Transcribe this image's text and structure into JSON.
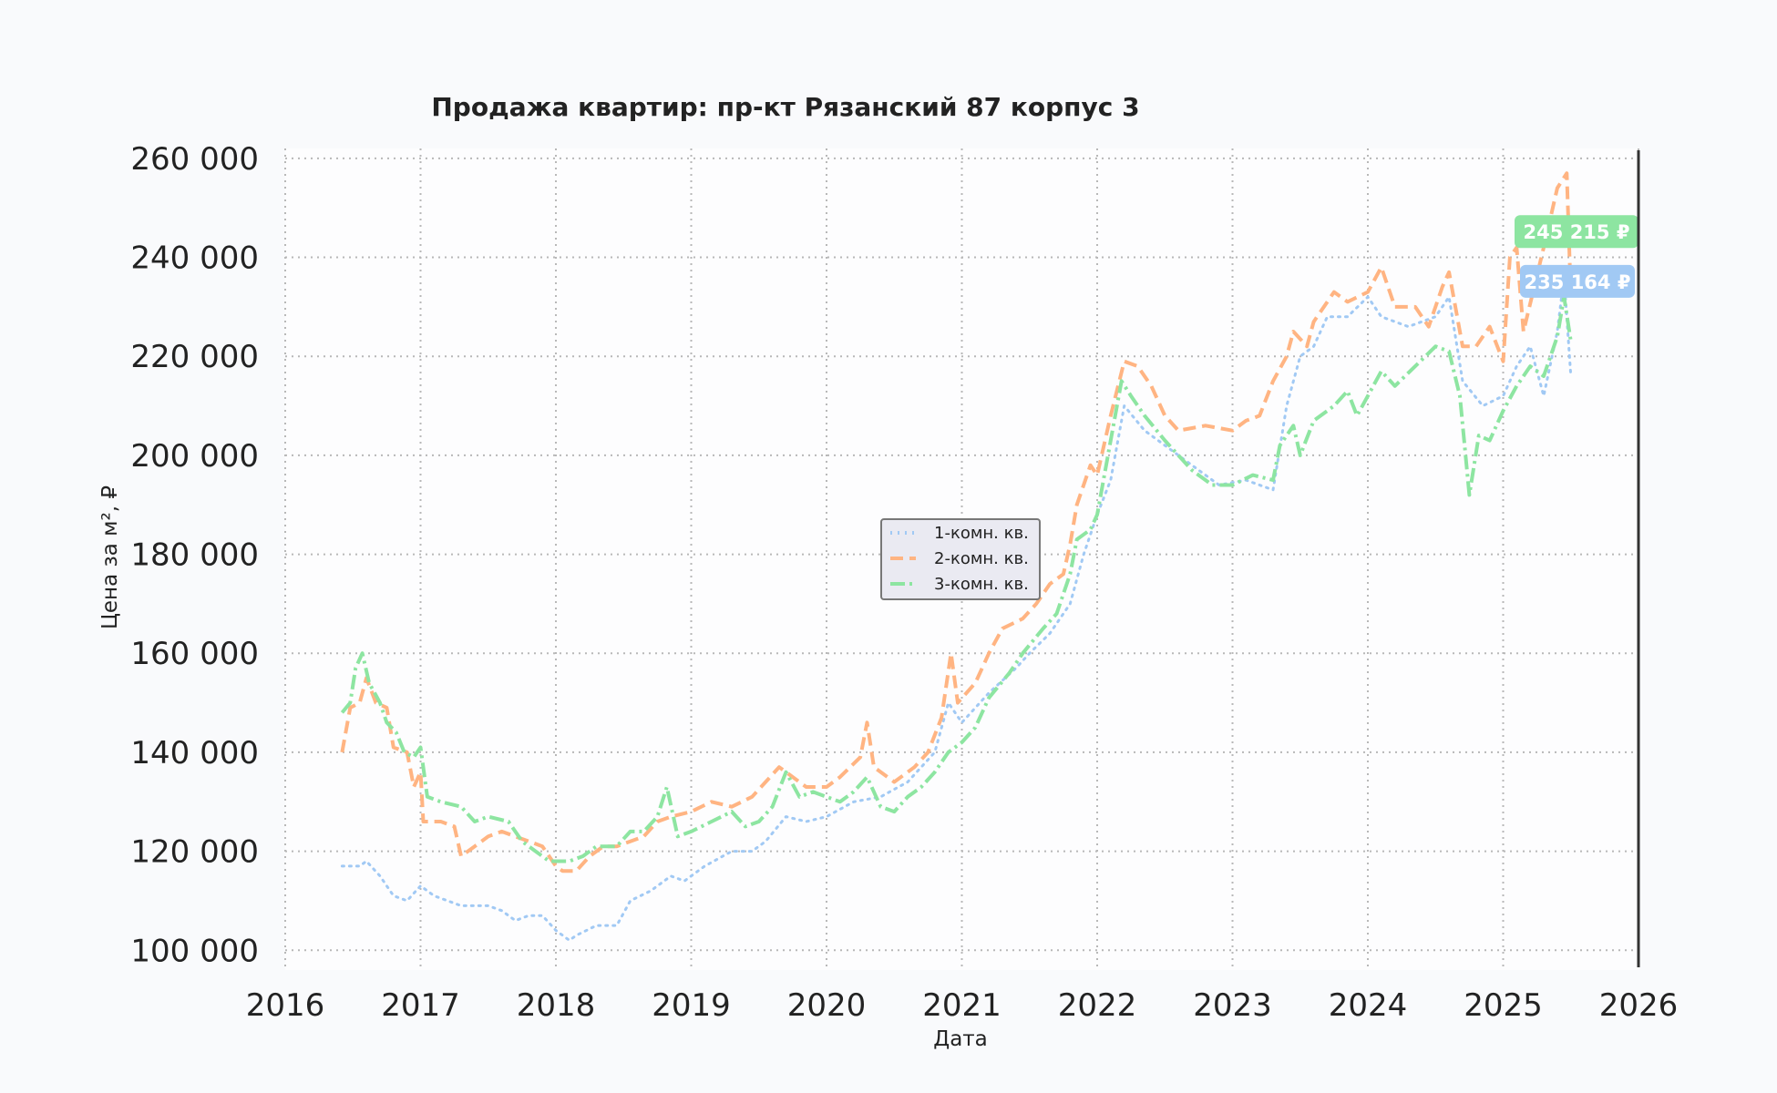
{
  "chart_data": {
    "type": "line",
    "title": "Продажа квартир: пр-кт Рязанский 87 корпус 3",
    "xlabel": "Дата",
    "ylabel": "Цена за м², ₽",
    "xlim": [
      2016.0,
      2026.0
    ],
    "ylim": [
      96000,
      262000
    ],
    "x_ticks": [
      2016,
      2017,
      2018,
      2019,
      2020,
      2021,
      2022,
      2023,
      2024,
      2025,
      2026
    ],
    "x_tick_labels": [
      "2016",
      "2017",
      "2018",
      "2019",
      "2020",
      "2021",
      "2022",
      "2023",
      "2024",
      "2025",
      "2026"
    ],
    "y_ticks": [
      100000,
      120000,
      140000,
      160000,
      180000,
      200000,
      220000,
      240000,
      260000
    ],
    "y_tick_labels": [
      "100 000",
      "120 000",
      "140 000",
      "160 000",
      "180 000",
      "200 000",
      "220 000",
      "240 000",
      "260 000"
    ],
    "grid": true,
    "legend_position": "center",
    "series": [
      {
        "name": "1-комн. кв.",
        "color": "#a1c9f4",
        "style": "dotted",
        "points": [
          [
            2016.42,
            117000
          ],
          [
            2016.55,
            117000
          ],
          [
            2016.6,
            118000
          ],
          [
            2016.7,
            115000
          ],
          [
            2016.8,
            111000
          ],
          [
            2016.9,
            110000
          ],
          [
            2017.0,
            113000
          ],
          [
            2017.1,
            111000
          ],
          [
            2017.3,
            109000
          ],
          [
            2017.5,
            109000
          ],
          [
            2017.6,
            108000
          ],
          [
            2017.7,
            106000
          ],
          [
            2017.8,
            107000
          ],
          [
            2017.9,
            107000
          ],
          [
            2018.0,
            104000
          ],
          [
            2018.1,
            102000
          ],
          [
            2018.15,
            103000
          ],
          [
            2018.3,
            105000
          ],
          [
            2018.45,
            105000
          ],
          [
            2018.55,
            110000
          ],
          [
            2018.7,
            112000
          ],
          [
            2018.85,
            115000
          ],
          [
            2018.95,
            114000
          ],
          [
            2019.1,
            117000
          ],
          [
            2019.3,
            120000
          ],
          [
            2019.45,
            120000
          ],
          [
            2019.55,
            122000
          ],
          [
            2019.7,
            127000
          ],
          [
            2019.85,
            126000
          ],
          [
            2020.0,
            127000
          ],
          [
            2020.2,
            130000
          ],
          [
            2020.4,
            131000
          ],
          [
            2020.6,
            134000
          ],
          [
            2020.8,
            140000
          ],
          [
            2020.9,
            150000
          ],
          [
            2021.0,
            146000
          ],
          [
            2021.2,
            152000
          ],
          [
            2021.4,
            157000
          ],
          [
            2021.5,
            160000
          ],
          [
            2021.65,
            164000
          ],
          [
            2021.8,
            170000
          ],
          [
            2021.9,
            180000
          ],
          [
            2022.0,
            188000
          ],
          [
            2022.1,
            195000
          ],
          [
            2022.2,
            210000
          ],
          [
            2022.35,
            205000
          ],
          [
            2022.5,
            202000
          ],
          [
            2022.7,
            198000
          ],
          [
            2022.9,
            194000
          ],
          [
            2023.1,
            195000
          ],
          [
            2023.3,
            193000
          ],
          [
            2023.4,
            210000
          ],
          [
            2023.5,
            220000
          ],
          [
            2023.6,
            222000
          ],
          [
            2023.7,
            228000
          ],
          [
            2023.85,
            228000
          ],
          [
            2024.0,
            232000
          ],
          [
            2024.1,
            228000
          ],
          [
            2024.3,
            226000
          ],
          [
            2024.5,
            228000
          ],
          [
            2024.6,
            232000
          ],
          [
            2024.7,
            215000
          ],
          [
            2024.85,
            210000
          ],
          [
            2025.0,
            212000
          ],
          [
            2025.1,
            218000
          ],
          [
            2025.2,
            222000
          ],
          [
            2025.3,
            212000
          ],
          [
            2025.4,
            225000
          ],
          [
            2025.45,
            236000
          ],
          [
            2025.5,
            216000
          ]
        ]
      },
      {
        "name": "2-комн. кв.",
        "color": "#ffb482",
        "style": "dashed",
        "points": [
          [
            2016.42,
            140000
          ],
          [
            2016.48,
            149000
          ],
          [
            2016.55,
            150000
          ],
          [
            2016.6,
            155000
          ],
          [
            2016.67,
            150000
          ],
          [
            2016.75,
            149000
          ],
          [
            2016.8,
            141000
          ],
          [
            2016.9,
            140000
          ],
          [
            2016.95,
            133000
          ],
          [
            2017.0,
            136000
          ],
          [
            2017.02,
            126000
          ],
          [
            2017.15,
            126000
          ],
          [
            2017.25,
            125000
          ],
          [
            2017.3,
            119000
          ],
          [
            2017.4,
            121000
          ],
          [
            2017.5,
            123000
          ],
          [
            2017.6,
            124000
          ],
          [
            2017.7,
            123000
          ],
          [
            2017.8,
            122000
          ],
          [
            2017.9,
            121000
          ],
          [
            2018.0,
            117000
          ],
          [
            2018.05,
            116000
          ],
          [
            2018.15,
            116000
          ],
          [
            2018.25,
            119000
          ],
          [
            2018.35,
            121000
          ],
          [
            2018.45,
            121000
          ],
          [
            2018.55,
            122000
          ],
          [
            2018.65,
            123000
          ],
          [
            2018.75,
            126000
          ],
          [
            2018.85,
            127000
          ],
          [
            2019.0,
            128000
          ],
          [
            2019.15,
            130000
          ],
          [
            2019.3,
            129000
          ],
          [
            2019.45,
            131000
          ],
          [
            2019.55,
            134000
          ],
          [
            2019.65,
            137000
          ],
          [
            2019.75,
            135000
          ],
          [
            2019.85,
            133000
          ],
          [
            2020.0,
            133000
          ],
          [
            2020.1,
            135000
          ],
          [
            2020.25,
            139000
          ],
          [
            2020.3,
            146000
          ],
          [
            2020.35,
            137000
          ],
          [
            2020.5,
            134000
          ],
          [
            2020.65,
            137000
          ],
          [
            2020.75,
            140000
          ],
          [
            2020.85,
            147000
          ],
          [
            2020.92,
            160000
          ],
          [
            2020.97,
            150000
          ],
          [
            2021.1,
            154000
          ],
          [
            2021.2,
            160000
          ],
          [
            2021.3,
            165000
          ],
          [
            2021.45,
            167000
          ],
          [
            2021.55,
            170000
          ],
          [
            2021.65,
            174000
          ],
          [
            2021.75,
            176000
          ],
          [
            2021.8,
            182000
          ],
          [
            2021.85,
            190000
          ],
          [
            2021.95,
            198000
          ],
          [
            2022.0,
            196000
          ],
          [
            2022.1,
            208000
          ],
          [
            2022.2,
            219000
          ],
          [
            2022.3,
            218000
          ],
          [
            2022.4,
            214000
          ],
          [
            2022.5,
            208000
          ],
          [
            2022.6,
            205000
          ],
          [
            2022.8,
            206000
          ],
          [
            2023.0,
            205000
          ],
          [
            2023.1,
            207000
          ],
          [
            2023.2,
            208000
          ],
          [
            2023.3,
            215000
          ],
          [
            2023.4,
            220000
          ],
          [
            2023.45,
            225000
          ],
          [
            2023.55,
            222000
          ],
          [
            2023.6,
            227000
          ],
          [
            2023.75,
            233000
          ],
          [
            2023.85,
            231000
          ],
          [
            2024.0,
            233000
          ],
          [
            2024.1,
            238000
          ],
          [
            2024.2,
            230000
          ],
          [
            2024.35,
            230000
          ],
          [
            2024.45,
            226000
          ],
          [
            2024.55,
            234000
          ],
          [
            2024.6,
            237000
          ],
          [
            2024.7,
            222000
          ],
          [
            2024.8,
            222000
          ],
          [
            2024.9,
            226000
          ],
          [
            2025.0,
            219000
          ],
          [
            2025.05,
            240000
          ],
          [
            2025.1,
            242000
          ],
          [
            2025.15,
            225000
          ],
          [
            2025.3,
            242000
          ],
          [
            2025.4,
            254000
          ],
          [
            2025.47,
            257000
          ],
          [
            2025.5,
            232000
          ]
        ]
      },
      {
        "name": "3-комн. кв.",
        "color": "#8de5a1",
        "style": "dash-dot",
        "points": [
          [
            2016.42,
            148000
          ],
          [
            2016.48,
            150000
          ],
          [
            2016.52,
            157000
          ],
          [
            2016.57,
            160000
          ],
          [
            2016.62,
            154000
          ],
          [
            2016.7,
            150000
          ],
          [
            2016.75,
            146000
          ],
          [
            2016.82,
            144000
          ],
          [
            2016.88,
            140000
          ],
          [
            2016.95,
            139000
          ],
          [
            2017.0,
            141000
          ],
          [
            2017.05,
            131000
          ],
          [
            2017.15,
            130000
          ],
          [
            2017.3,
            129000
          ],
          [
            2017.4,
            126000
          ],
          [
            2017.5,
            127000
          ],
          [
            2017.65,
            126000
          ],
          [
            2017.75,
            122000
          ],
          [
            2017.85,
            120000
          ],
          [
            2017.95,
            118000
          ],
          [
            2018.0,
            118000
          ],
          [
            2018.1,
            118000
          ],
          [
            2018.2,
            119000
          ],
          [
            2018.3,
            121000
          ],
          [
            2018.45,
            121000
          ],
          [
            2018.55,
            124000
          ],
          [
            2018.65,
            124000
          ],
          [
            2018.75,
            127000
          ],
          [
            2018.82,
            133000
          ],
          [
            2018.9,
            123000
          ],
          [
            2019.0,
            124000
          ],
          [
            2019.15,
            126000
          ],
          [
            2019.3,
            128000
          ],
          [
            2019.4,
            125000
          ],
          [
            2019.5,
            126000
          ],
          [
            2019.6,
            129000
          ],
          [
            2019.7,
            136000
          ],
          [
            2019.8,
            131000
          ],
          [
            2019.9,
            132000
          ],
          [
            2020.0,
            131000
          ],
          [
            2020.1,
            130000
          ],
          [
            2020.2,
            132000
          ],
          [
            2020.3,
            135000
          ],
          [
            2020.4,
            129000
          ],
          [
            2020.5,
            128000
          ],
          [
            2020.6,
            131000
          ],
          [
            2020.7,
            133000
          ],
          [
            2020.8,
            136000
          ],
          [
            2020.9,
            140000
          ],
          [
            2021.0,
            142000
          ],
          [
            2021.1,
            145000
          ],
          [
            2021.2,
            151000
          ],
          [
            2021.35,
            156000
          ],
          [
            2021.45,
            160000
          ],
          [
            2021.6,
            165000
          ],
          [
            2021.7,
            168000
          ],
          [
            2021.8,
            176000
          ],
          [
            2021.85,
            183000
          ],
          [
            2021.95,
            185000
          ],
          [
            2022.0,
            188000
          ],
          [
            2022.1,
            203000
          ],
          [
            2022.18,
            215000
          ],
          [
            2022.25,
            212000
          ],
          [
            2022.35,
            208000
          ],
          [
            2022.5,
            203000
          ],
          [
            2022.6,
            200000
          ],
          [
            2022.7,
            197000
          ],
          [
            2022.85,
            194000
          ],
          [
            2023.0,
            194000
          ],
          [
            2023.15,
            196000
          ],
          [
            2023.3,
            195000
          ],
          [
            2023.35,
            202000
          ],
          [
            2023.45,
            206000
          ],
          [
            2023.5,
            200000
          ],
          [
            2023.6,
            207000
          ],
          [
            2023.75,
            210000
          ],
          [
            2023.85,
            213000
          ],
          [
            2023.92,
            208000
          ],
          [
            2024.0,
            212000
          ],
          [
            2024.1,
            217000
          ],
          [
            2024.2,
            214000
          ],
          [
            2024.35,
            218000
          ],
          [
            2024.5,
            222000
          ],
          [
            2024.6,
            221000
          ],
          [
            2024.68,
            212000
          ],
          [
            2024.75,
            192000
          ],
          [
            2024.82,
            204000
          ],
          [
            2024.9,
            203000
          ],
          [
            2025.0,
            209000
          ],
          [
            2025.1,
            214000
          ],
          [
            2025.2,
            218000
          ],
          [
            2025.3,
            216000
          ],
          [
            2025.4,
            224000
          ],
          [
            2025.45,
            232000
          ],
          [
            2025.5,
            223000
          ]
        ]
      }
    ],
    "annotations": [
      {
        "text": "245 215 ₽",
        "value": 245215,
        "color": "#8de5a1"
      },
      {
        "text": "235 164 ₽",
        "value": 235164,
        "color": "#a1c9f4"
      }
    ]
  }
}
